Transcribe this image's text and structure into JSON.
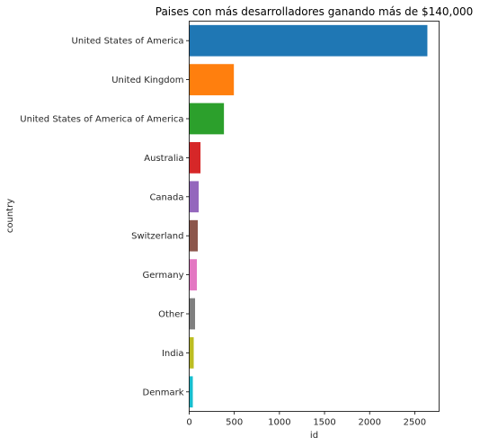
{
  "chart_data": {
    "type": "bar",
    "orientation": "horizontal",
    "title": "Paises con más desarrolladores ganando más de $140,000",
    "xlabel": "id",
    "ylabel": "country",
    "categories": [
      "United States of America",
      "United Kingdom",
      "United States of America of America",
      "Australia",
      "Canada",
      "Switzerland",
      "Germany",
      "Other",
      "India",
      "Denmark"
    ],
    "values": [
      2640,
      495,
      385,
      125,
      105,
      95,
      85,
      65,
      50,
      40
    ],
    "colors": [
      "#1f77b4",
      "#ff7f0e",
      "#2ca02c",
      "#d62728",
      "#9467bd",
      "#8c564b",
      "#e377c2",
      "#7f7f7f",
      "#bcbd22",
      "#17becf"
    ],
    "xlim": [
      0,
      2770
    ],
    "xticks": [
      0,
      500,
      1000,
      1500,
      2000,
      2500
    ],
    "grid": false,
    "legend": false
  }
}
